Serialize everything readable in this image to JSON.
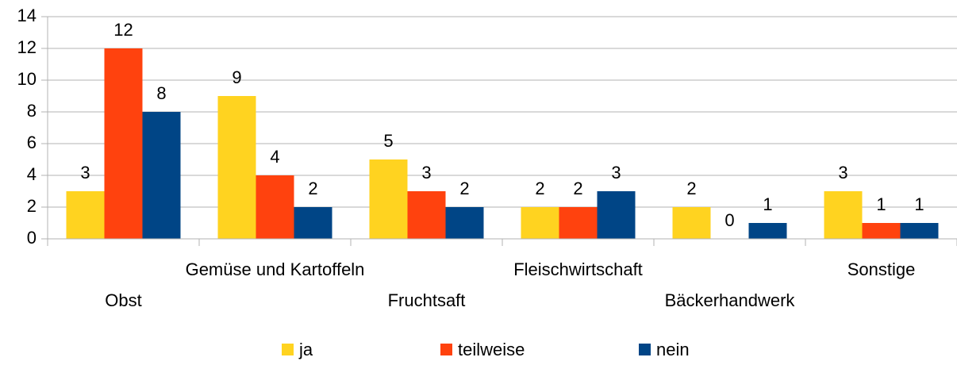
{
  "chart_data": {
    "type": "bar",
    "categories": [
      "Obst",
      "Gemüse und Kartoffeln",
      "Fruchtsaft",
      "Fleischwirtschaft",
      "Bäckerhandwerk",
      "Sonstige"
    ],
    "series": [
      {
        "name": "ja",
        "color": "#ffd320",
        "values": [
          3,
          9,
          5,
          2,
          2,
          3
        ]
      },
      {
        "name": "teilweise",
        "color": "#ff420e",
        "values": [
          12,
          4,
          3,
          2,
          0,
          1
        ]
      },
      {
        "name": "nein",
        "color": "#004586",
        "values": [
          8,
          2,
          2,
          3,
          1,
          1
        ]
      }
    ],
    "ylim": [
      0,
      14
    ],
    "yticks": [
      0,
      2,
      4,
      6,
      8,
      10,
      12,
      14
    ],
    "grid": true,
    "legend": "bottom"
  }
}
